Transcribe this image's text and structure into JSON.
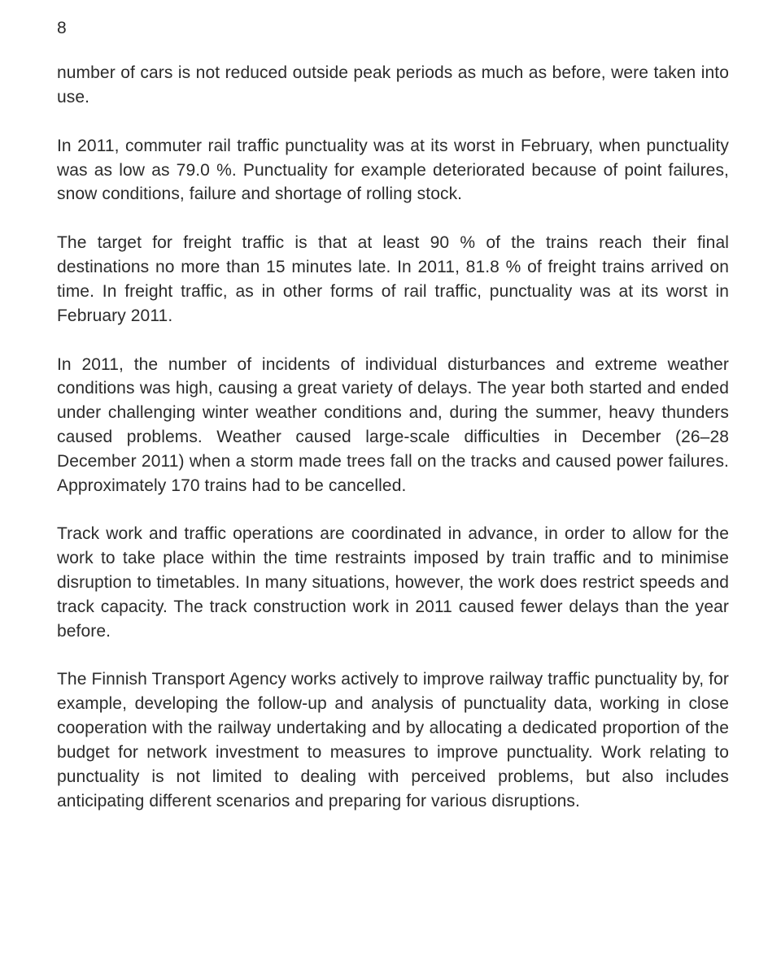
{
  "page_number": "8",
  "paragraphs": [
    "number of cars is not reduced outside peak periods as much as before, were taken into use.",
    "In 2011, commuter rail traffic punctuality was at its worst in February, when punctuality was as low as 79.0 %. Punctuality for example deteriorated because of point failures, snow conditions, failure and shortage of rolling stock.",
    "The target for freight traffic is that at least 90 % of the trains reach their final destinations no more than 15 minutes late. In 2011, 81.8 % of freight trains arrived on time. In freight traffic, as in other forms of rail traffic, punctuality was at its worst in February 2011.",
    "In 2011, the number of incidents of individual disturbances and extreme weather conditions was high, causing a great variety of delays. The year both started and ended under challenging winter weather conditions and, during the summer, heavy thunders caused problems. Weather caused large-scale difficulties in December (26–28 December 2011) when a storm made trees fall on the tracks and caused power failures. Approximately 170 trains had to be cancelled.",
    "Track work and traffic operations are coordinated in advance, in order to allow for the work to take place within the time restraints imposed by train traffic and to minimise disruption to timetables. In many situations, however, the work does restrict speeds and track capacity. The track construction work in 2011 caused fewer delays than the year before.",
    "The Finnish Transport Agency works actively to improve railway traffic punctuality by, for example, developing the follow-up and analysis of punctuality data, working in close cooperation with the railway undertaking and by allocating a dedicated proportion of the budget for network investment to measures to improve punctuality. Work relating to punctuality is not limited to dealing with perceived problems, but also includes anticipating different scenarios and preparing for various disruptions."
  ]
}
